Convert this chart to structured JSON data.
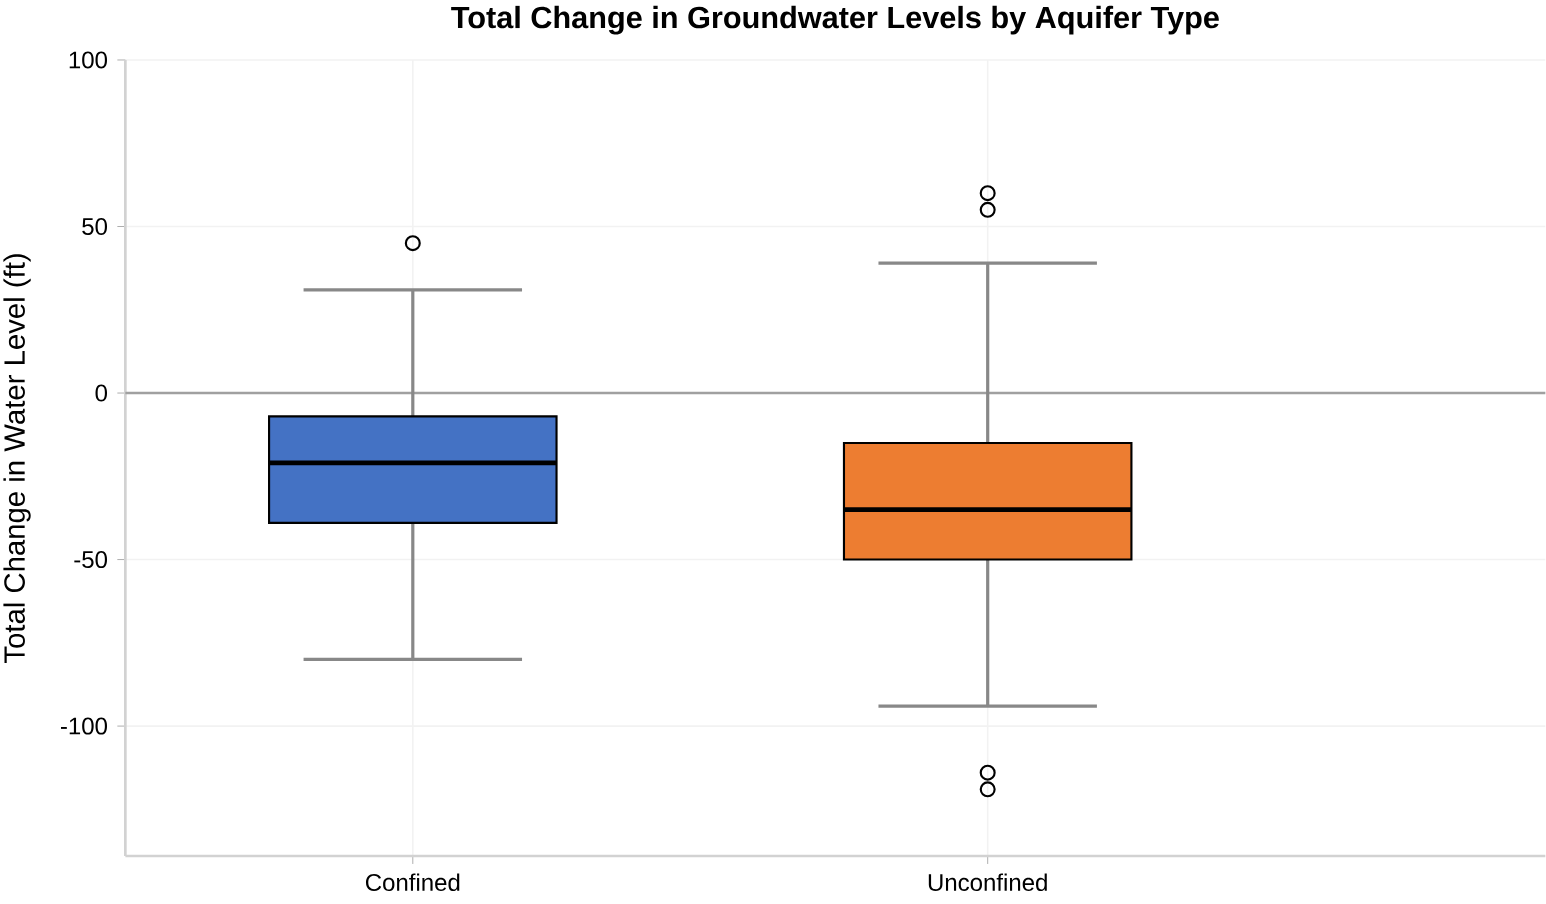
{
  "chart_data": {
    "type": "box",
    "title": "Total Change in Groundwater Levels by Aquifer Type",
    "ylabel": "Total Change in Water Level (ft)",
    "categories": [
      "Confined",
      "Unconfined"
    ],
    "colors": [
      "#4472c4",
      "#ed7d31"
    ],
    "boxes": [
      {
        "low": -80,
        "q1": -39,
        "median": -21,
        "q3": -7,
        "high": 31,
        "outliers": [
          45
        ]
      },
      {
        "low": -94,
        "q1": -50,
        "median": -35,
        "q3": -15,
        "high": 39,
        "outliers": [
          60,
          55,
          -114,
          -119
        ]
      }
    ],
    "ylim": [
      -139,
      100
    ],
    "yticks": [
      -100,
      -50,
      0,
      50,
      100
    ],
    "grid": true,
    "ref_lines": [
      {
        "axis": "y",
        "value": 0,
        "color": "#a0a0a0"
      }
    ]
  }
}
